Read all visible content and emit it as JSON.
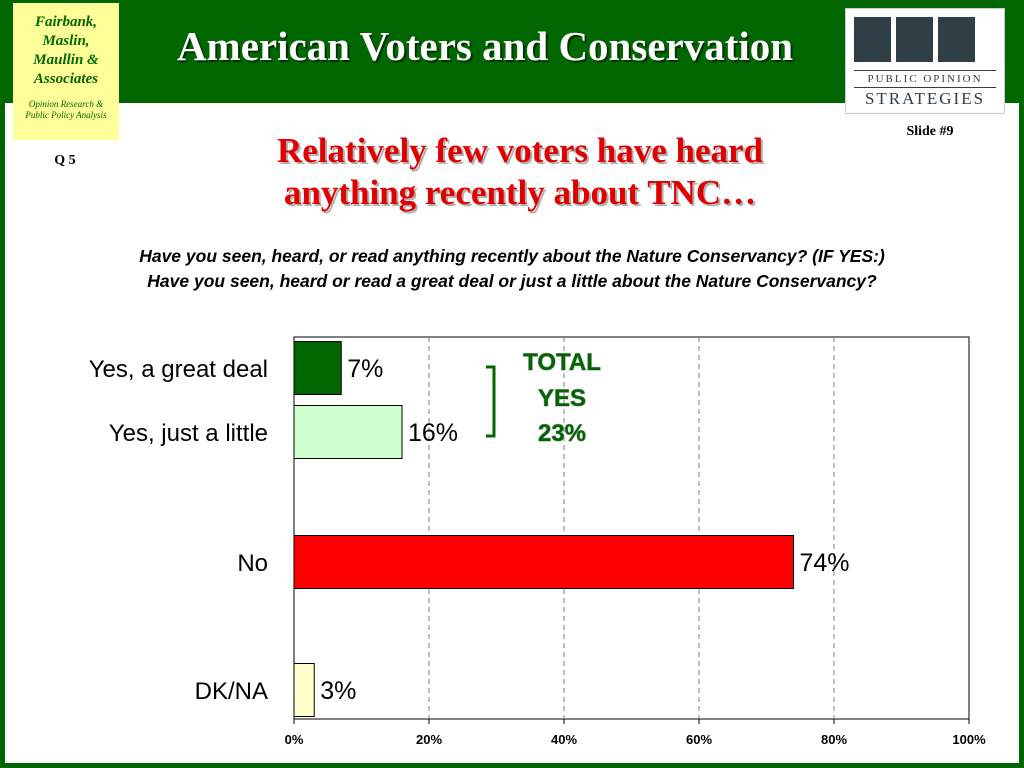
{
  "header": {
    "title": "American Voters and Conservation",
    "firm_lines": [
      "Fairbank,",
      "Maslin,",
      "Maullin &",
      "Associates"
    ],
    "firm_tagline_lines": [
      "Opinion Research &",
      "Public Policy Analysis"
    ],
    "pos_logo_line1": "PUBLIC OPINION",
    "pos_logo_line2": "STRATEGIES",
    "slide_number": "Slide #9",
    "question_number": "Q 5"
  },
  "headline_lines": [
    "Relatively few voters have heard",
    "anything recently about TNC…"
  ],
  "question_lines": [
    "Have you seen, heard, or read anything recently about the Nature Conservancy?  (IF YES:)",
    "Have you seen, heard or read a great deal or just a little about the Nature Conservancy?"
  ],
  "colors": {
    "brand_green": "#006600",
    "header_title": "#ffffff",
    "headline_red": "#e00000"
  },
  "chart_data": {
    "type": "bar",
    "orientation": "horizontal",
    "categories": [
      "Yes, a great deal",
      "Yes, just a little",
      "No",
      "DK/NA"
    ],
    "values": [
      7,
      16,
      74,
      3
    ],
    "value_labels": [
      "7%",
      "16%",
      "74%",
      "3%"
    ],
    "colors": [
      "#006600",
      "#ccffcc",
      "#ff0000",
      "#ffffcc"
    ],
    "xlim": [
      0,
      100
    ],
    "x_ticks": [
      0,
      20,
      40,
      60,
      80,
      100
    ],
    "x_tick_labels": [
      "0%",
      "20%",
      "40%",
      "60%",
      "80%",
      "100%"
    ],
    "grid": "vertical dashed",
    "annotation": {
      "lines": [
        "TOTAL",
        "YES",
        "23%"
      ],
      "brackets": [
        "Yes, a great deal",
        "Yes, just a little"
      ]
    }
  }
}
